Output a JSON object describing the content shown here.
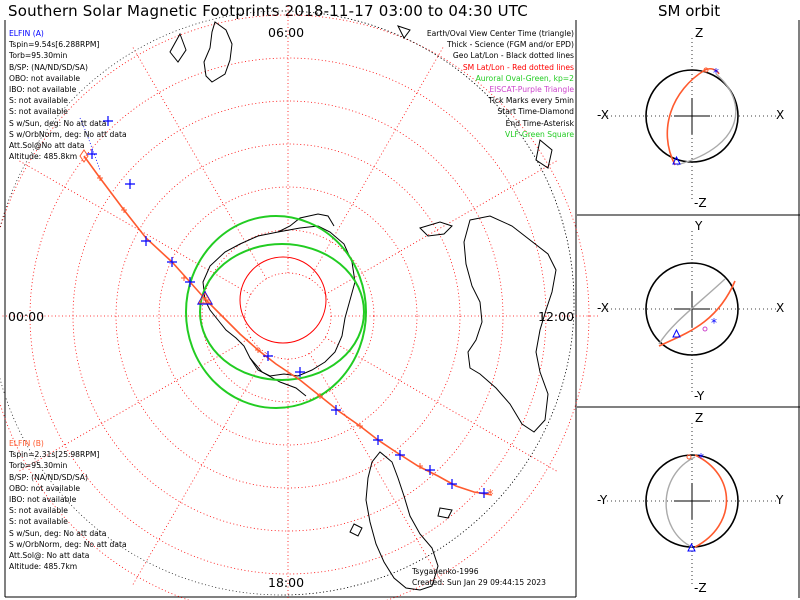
{
  "title": "Southern Solar Magnetic Footprints 2018-11-17 03:00 to 04:30 UTC",
  "orbit_panel_title": "SM orbit",
  "hour_labels": {
    "top": "06:00",
    "left": "00:00",
    "bottom": "18:00",
    "right": "12:00"
  },
  "elfin_a": {
    "name": "ELFIN (A)",
    "color": "#0000ff",
    "lines": [
      "Tspin=9.54s[6.288RPM]",
      "Torb=95.30min",
      "B/SP: (NA/ND/SD/SA)",
      "OBO: not available",
      "IBO: not available",
      "S: not available",
      "S: not available",
      "S w/Sun, deg: No att data",
      "S w/OrbNorm, deg: No att data",
      "Att.Sol@No att data",
      "Altitude: 485.8km"
    ]
  },
  "elfin_b": {
    "name": "ELFIN (B)",
    "color": "#ff5a2e",
    "lines": [
      "Tspin=2.31s[25.98RPM]",
      "Torb=95.30min",
      "B/SP: (NA/ND/SD/SA)",
      "OBO: not available",
      "IBO: not available",
      "S: not available",
      "S: not available",
      "S w/Sun, deg: No att data",
      "S w/OrbNorm, deg: No att data",
      "Att.Sol@: No att data",
      "Altitude: 485.7km"
    ]
  },
  "legend": [
    {
      "text": "Earth/Oval View Center Time (triangle)",
      "color": "#000000"
    },
    {
      "text": "Thick - Science (FGM and/or EPD)",
      "color": "#000000"
    },
    {
      "text": "Geo Lat/Lon - Black dotted lines",
      "color": "#000000"
    },
    {
      "text": "SM Lat/Lon - Red dotted lines",
      "color": "#ff0000"
    },
    {
      "text": "Auroral Oval-Green, kp=2",
      "color": "#22cc22"
    },
    {
      "text": "EISCAT-Purple Triangle",
      "color": "#cc44cc"
    },
    {
      "text": "Tick Marks every 5min",
      "color": "#000000"
    },
    {
      "text": "Start Time-Diamond",
      "color": "#000000"
    },
    {
      "text": "End Time-Asterisk",
      "color": "#000000"
    },
    {
      "text": "VLF-Green Square",
      "color": "#22cc22"
    }
  ],
  "credit": {
    "line1": "Tsyganenko-1996",
    "line2": "Created: Sun Jan 29 09:44:15 2023"
  },
  "orbit_panels": [
    {
      "top": "Z",
      "bottom": "-Z",
      "left": "-X",
      "right": "X"
    },
    {
      "top": "Y",
      "bottom": "-Y",
      "left": "-X",
      "right": "X"
    },
    {
      "top": "Z",
      "bottom": "-Z",
      "left": "-Y",
      "right": "Y"
    }
  ],
  "colors": {
    "elfin_a": "#0000ff",
    "elfin_b": "#ff5a2e",
    "sm_grid": "#ff0000",
    "auroral_oval": "#22cc22",
    "geo_grid": "#000000",
    "orbit_back": "#aaaaaa"
  }
}
